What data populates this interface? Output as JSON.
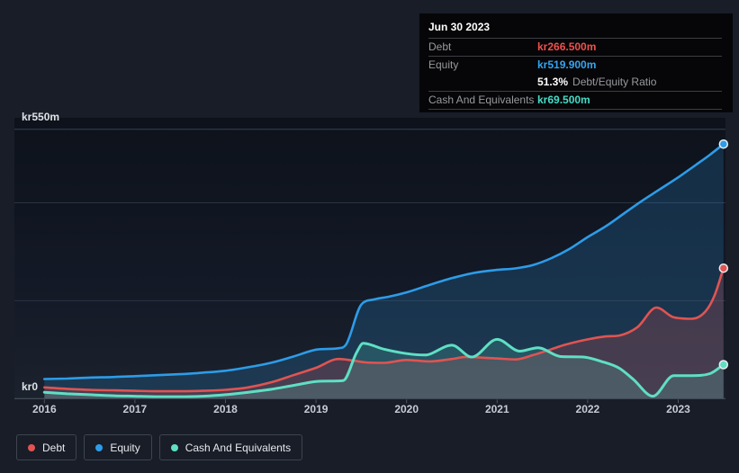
{
  "colors": {
    "background": "#181d28",
    "plot_top": "#0d121b",
    "plot_bottom": "#1b222d",
    "grid": "#2b3340",
    "grid_top": "#3a4350",
    "axis": "#4d5664",
    "label_text": "#dfe3e8",
    "tick_text": "#c6ccd4",
    "debt": "#e05452",
    "equity": "#2d9ce8",
    "cash": "#5fdfc4",
    "debt_value": "#f0504c",
    "equity_value": "#35a4f0",
    "cash_value": "#45dcc6",
    "tooltip_bg": "#060608",
    "tooltip_label": "#97999c",
    "tooltip_divider": "#3c3e42"
  },
  "tooltip": {
    "date": "Jun 30 2023",
    "rows": {
      "debt": {
        "label": "Debt",
        "value": "kr266.500m"
      },
      "equity": {
        "label": "Equity",
        "value": "kr519.900m"
      },
      "ratio": {
        "value": "51.3%",
        "label": "Debt/Equity Ratio"
      },
      "cash": {
        "label": "Cash And Equivalents",
        "value": "kr69.500m"
      }
    }
  },
  "axes": {
    "y_top_label": "kr550m",
    "y_zero_label": "kr0",
    "years": [
      "2016",
      "2017",
      "2018",
      "2019",
      "2020",
      "2021",
      "2022",
      "2023"
    ]
  },
  "legend": {
    "items": [
      {
        "label": "Debt"
      },
      {
        "label": "Equity"
      },
      {
        "label": "Cash And Equivalents"
      }
    ]
  },
  "chart_data": {
    "type": "area",
    "unit": "kr, millions (SEK)",
    "ylim": [
      0,
      550
    ],
    "gridline_values": [
      200,
      400,
      550
    ],
    "x_ticks": [
      2016,
      2017,
      2018,
      2019,
      2020,
      2021,
      2022,
      2023
    ],
    "x_range": [
      2016,
      2023.5
    ],
    "snapshot": {
      "date": "Jun 30 2023",
      "debt": 266.5,
      "equity": 519.9,
      "debt_equity_ratio_pct": 51.3,
      "cash": 69.5
    },
    "series": [
      {
        "name": "Equity",
        "color": "#2d9ce8",
        "fill_alpha": 0.2,
        "width": 2.6,
        "points": [
          [
            2016,
            40
          ],
          [
            2016.25,
            41
          ],
          [
            2016.5,
            43
          ],
          [
            2016.75,
            44
          ],
          [
            2017,
            46
          ],
          [
            2017.25,
            48
          ],
          [
            2017.5,
            50
          ],
          [
            2017.75,
            53
          ],
          [
            2018,
            57
          ],
          [
            2018.25,
            64
          ],
          [
            2018.5,
            73
          ],
          [
            2018.75,
            86
          ],
          [
            2019,
            100
          ],
          [
            2019.25,
            103
          ],
          [
            2019.33,
            110
          ],
          [
            2019.5,
            192
          ],
          [
            2019.65,
            203
          ],
          [
            2019.8,
            208
          ],
          [
            2020,
            217
          ],
          [
            2020.25,
            232
          ],
          [
            2020.5,
            246
          ],
          [
            2020.75,
            257
          ],
          [
            2021,
            263
          ],
          [
            2021.2,
            266
          ],
          [
            2021.4,
            273
          ],
          [
            2021.6,
            287
          ],
          [
            2021.8,
            306
          ],
          [
            2022,
            330
          ],
          [
            2022.2,
            352
          ],
          [
            2022.4,
            378
          ],
          [
            2022.6,
            404
          ],
          [
            2022.8,
            428
          ],
          [
            2023,
            452
          ],
          [
            2023.2,
            478
          ],
          [
            2023.35,
            498
          ],
          [
            2023.5,
            519.9
          ]
        ]
      },
      {
        "name": "Debt",
        "color": "#e05452",
        "fill_alpha": 0.22,
        "width": 2.6,
        "points": [
          [
            2016,
            23
          ],
          [
            2016.25,
            20
          ],
          [
            2016.5,
            18
          ],
          [
            2016.75,
            17
          ],
          [
            2017,
            16
          ],
          [
            2017.25,
            15
          ],
          [
            2017.5,
            15
          ],
          [
            2017.75,
            16
          ],
          [
            2018,
            18
          ],
          [
            2018.25,
            23
          ],
          [
            2018.5,
            33
          ],
          [
            2018.75,
            48
          ],
          [
            2019,
            63
          ],
          [
            2019.25,
            81
          ],
          [
            2019.4,
            78
          ],
          [
            2019.55,
            74
          ],
          [
            2019.75,
            73
          ],
          [
            2020,
            79
          ],
          [
            2020.25,
            76
          ],
          [
            2020.5,
            81
          ],
          [
            2020.65,
            85
          ],
          [
            2021,
            82
          ],
          [
            2021.2,
            80
          ],
          [
            2021.4,
            89
          ],
          [
            2021.6,
            101
          ],
          [
            2021.75,
            110
          ],
          [
            2022,
            121
          ],
          [
            2022.2,
            127
          ],
          [
            2022.35,
            129
          ],
          [
            2022.55,
            146
          ],
          [
            2022.76,
            186
          ],
          [
            2022.95,
            166
          ],
          [
            2023.15,
            163
          ],
          [
            2023.3,
            178
          ],
          [
            2023.4,
            210
          ],
          [
            2023.5,
            266.5
          ]
        ]
      },
      {
        "name": "Cash And Equivalents",
        "color": "#5fdfc4",
        "fill_alpha": 0.18,
        "width": 3,
        "points": [
          [
            2016,
            13
          ],
          [
            2016.25,
            10
          ],
          [
            2016.5,
            8
          ],
          [
            2016.75,
            6
          ],
          [
            2017,
            5
          ],
          [
            2017.25,
            4
          ],
          [
            2017.5,
            4
          ],
          [
            2017.75,
            5
          ],
          [
            2018,
            8
          ],
          [
            2018.25,
            13
          ],
          [
            2018.5,
            19
          ],
          [
            2018.75,
            27
          ],
          [
            2019,
            35
          ],
          [
            2019.3,
            37
          ],
          [
            2019.45,
            95
          ],
          [
            2019.52,
            113
          ],
          [
            2019.75,
            101
          ],
          [
            2020,
            92
          ],
          [
            2020.2,
            89
          ],
          [
            2020.5,
            109
          ],
          [
            2020.72,
            85
          ],
          [
            2021,
            121
          ],
          [
            2021.25,
            97
          ],
          [
            2021.45,
            104
          ],
          [
            2021.7,
            86
          ],
          [
            2021.95,
            85
          ],
          [
            2022.15,
            76
          ],
          [
            2022.35,
            62
          ],
          [
            2022.5,
            40
          ],
          [
            2022.72,
            5
          ],
          [
            2022.95,
            47
          ],
          [
            2023.15,
            47
          ],
          [
            2023.35,
            51
          ],
          [
            2023.5,
            69.5
          ]
        ]
      }
    ]
  }
}
